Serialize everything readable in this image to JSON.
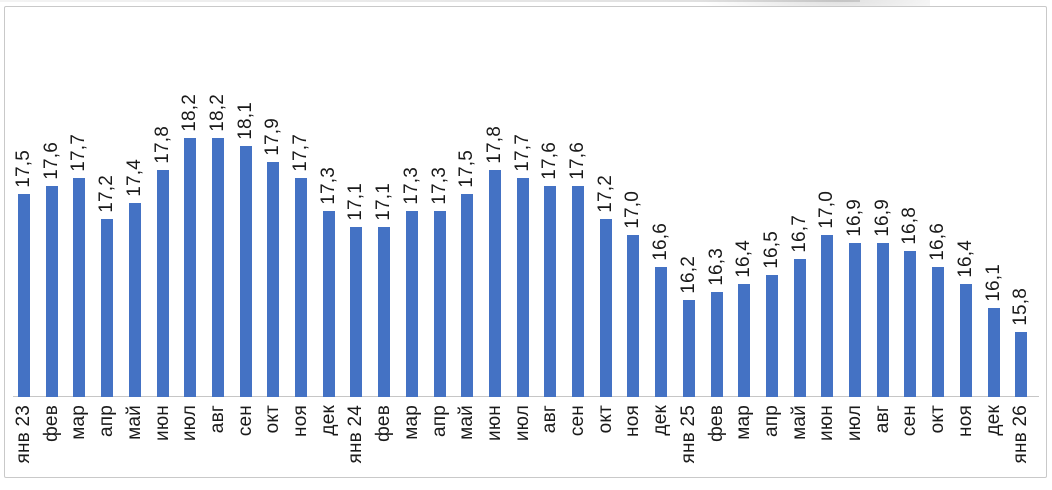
{
  "chart_data": {
    "type": "bar",
    "title": "",
    "xlabel": "",
    "ylabel": "",
    "categories": [
      "янв 23",
      "фев",
      "мар",
      "апр",
      "май",
      "июн",
      "июл",
      "авг",
      "сен",
      "окт",
      "ноя",
      "дек",
      "янв 24",
      "фев",
      "мар",
      "апр",
      "май",
      "июн",
      "июл",
      "авг",
      "сен",
      "окт",
      "ноя",
      "дек",
      "янв 25",
      "фев",
      "мар",
      "апр",
      "май",
      "июн",
      "июл",
      "авг",
      "сен",
      "окт",
      "ноя",
      "дек",
      "янв 26"
    ],
    "values": [
      17.5,
      17.6,
      17.7,
      17.2,
      17.4,
      17.8,
      18.2,
      18.2,
      18.1,
      17.9,
      17.7,
      17.3,
      17.1,
      17.1,
      17.3,
      17.3,
      17.5,
      17.8,
      17.7,
      17.6,
      17.6,
      17.2,
      17.0,
      16.6,
      16.2,
      16.3,
      16.4,
      16.5,
      16.7,
      17.0,
      16.9,
      16.9,
      16.8,
      16.6,
      16.4,
      16.1,
      15.8
    ],
    "value_labels": [
      "17,5",
      "17,6",
      "17,7",
      "17,2",
      "17,4",
      "17,8",
      "18,2",
      "18,2",
      "18,1",
      "17,9",
      "17,7",
      "17,3",
      "17,1",
      "17,1",
      "17,3",
      "17,3",
      "17,5",
      "17,8",
      "17,7",
      "17,6",
      "17,6",
      "17,2",
      "17,0",
      "16,6",
      "16,2",
      "16,3",
      "16,4",
      "16,5",
      "16,7",
      "17,0",
      "16,9",
      "16,9",
      "16,8",
      "16,6",
      "16,4",
      "16,1",
      "15,8"
    ],
    "ylim": [
      15,
      18.5
    ],
    "grid": false,
    "legend": false,
    "label_rotation_deg": 270,
    "bar_color": "#4472C4",
    "axis_line_color": "#c6c6c6",
    "text_color": "#1a1a1a"
  }
}
